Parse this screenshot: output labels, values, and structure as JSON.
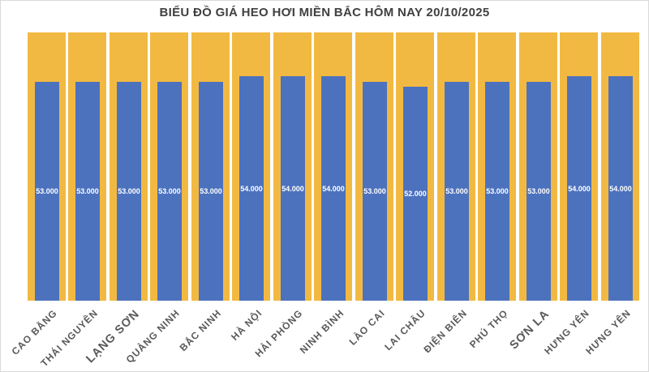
{
  "title": "BIỂU ĐỒ GIÁ HEO HƠI MIỀN BẮC HÔM NAY 20/10/2025",
  "colors": {
    "price_bar": "#4C72BE",
    "background_bar": "#F2B942",
    "title_text": "#404040",
    "category_text": "#595959",
    "value_text": "#FFFFFF",
    "border": "#D9D9D9"
  },
  "chart_data": {
    "type": "bar",
    "title": "BIỂU ĐỒ GIÁ HEO HƠI MIỀN BẮC HÔM NAY 20/10/2025",
    "legend_position": "none",
    "gridlines": false,
    "value_axis_visible": false,
    "background_columns_full_height": true,
    "categories": [
      "CAO BẰNG",
      "THÁI NGUYÊN",
      "LẠNG SƠN",
      "QUẢNG NINH",
      "BẮC NINH",
      "HÀ NỘI",
      "HẢI PHÒNG",
      "NINH BÌNH",
      "LÀO CAI",
      "LAI CHÂU",
      "ĐIỆN BIÊN",
      "PHÚ THỌ",
      "SƠN LA",
      "HƯNG YÊN",
      "HƯNG YÊN"
    ],
    "values": [
      53000,
      53000,
      53000,
      53000,
      53000,
      54000,
      54000,
      54000,
      53000,
      52000,
      53000,
      53000,
      53000,
      54000,
      54000
    ],
    "value_labels": [
      "53.000",
      "53.000",
      "53.000",
      "53.000",
      "53.000",
      "54.000",
      "54.000",
      "54.000",
      "53.000",
      "52.000",
      "53.000",
      "53.000",
      "53.000",
      "54.000",
      "54.000"
    ],
    "emphasized_category_indexes": [
      2,
      12
    ]
  }
}
